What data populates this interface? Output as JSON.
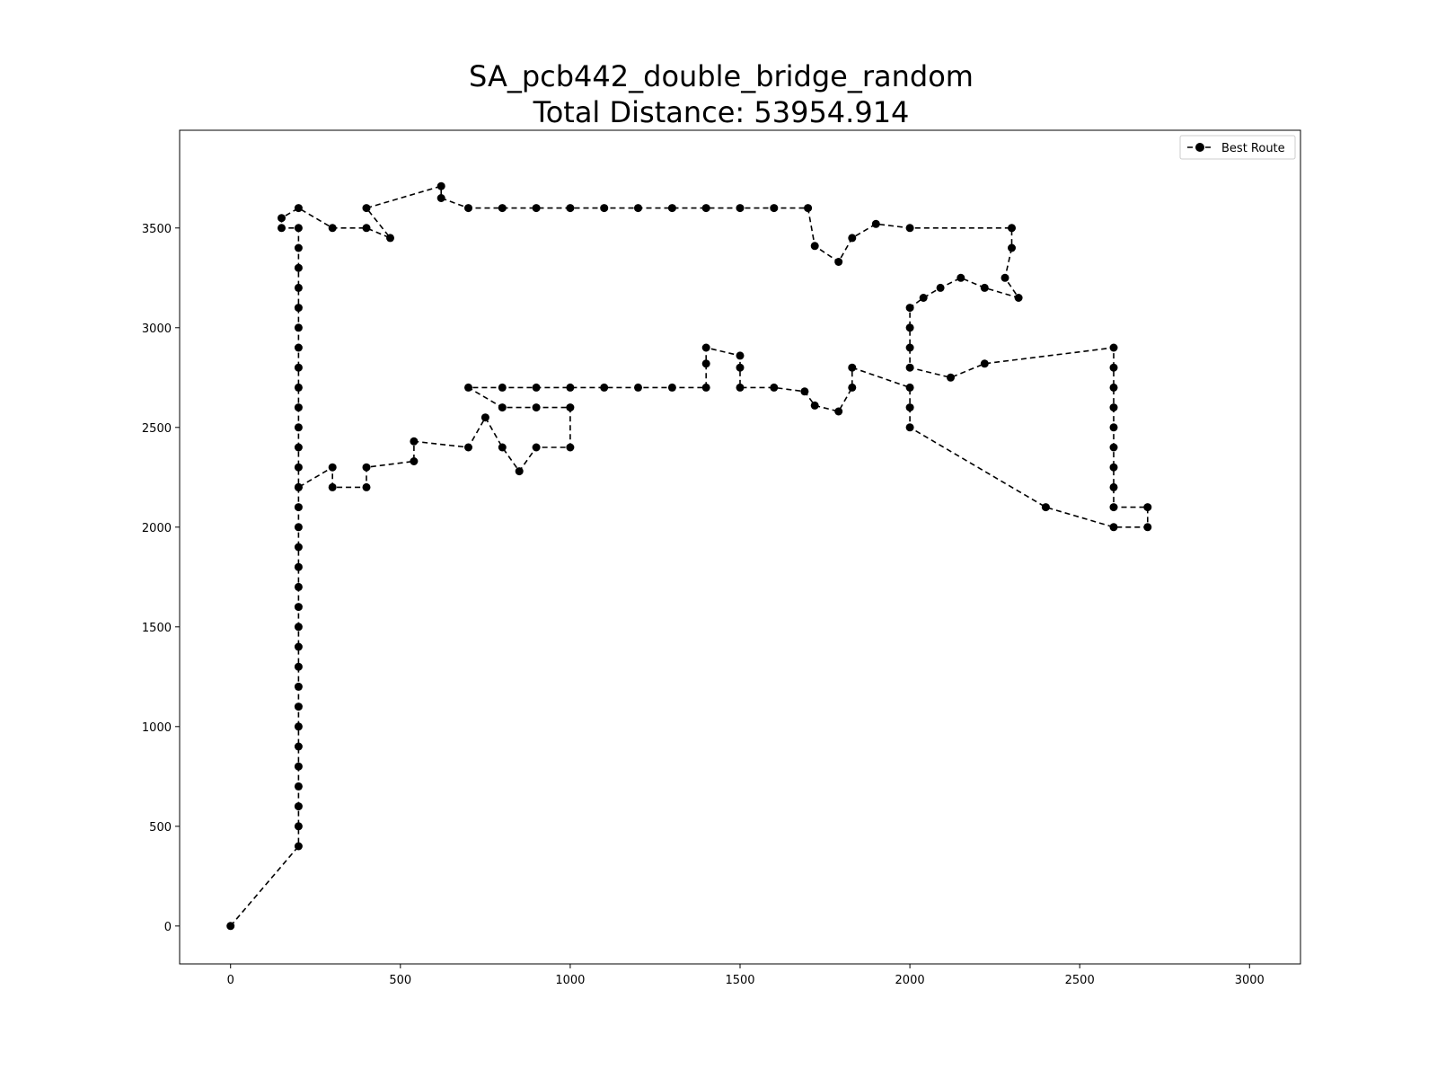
{
  "chart_data": {
    "type": "line",
    "title": "SA_pcb442_double_bridge_random",
    "subtitle": "Total Distance: 53954.914",
    "xlabel": "",
    "ylabel": "",
    "xlim": [
      -150,
      3150
    ],
    "ylim": [
      -190,
      3990
    ],
    "xticks": [
      0,
      500,
      1000,
      1500,
      2000,
      2500,
      3000
    ],
    "yticks": [
      0,
      500,
      1000,
      1500,
      2000,
      2500,
      3000,
      3500
    ],
    "grid": false,
    "legend_position": "top-right",
    "line_style": "dashed",
    "marker": "circle",
    "color": "#000000",
    "series": [
      {
        "name": "Best Route",
        "points": [
          [
            0,
            0
          ],
          [
            200,
            400
          ],
          [
            200,
            500
          ],
          [
            200,
            600
          ],
          [
            200,
            700
          ],
          [
            200,
            800
          ],
          [
            200,
            900
          ],
          [
            200,
            1000
          ],
          [
            200,
            1100
          ],
          [
            200,
            1200
          ],
          [
            200,
            1300
          ],
          [
            200,
            1400
          ],
          [
            200,
            1500
          ],
          [
            200,
            1600
          ],
          [
            200,
            1700
          ],
          [
            200,
            1800
          ],
          [
            200,
            1900
          ],
          [
            200,
            2000
          ],
          [
            200,
            2100
          ],
          [
            200,
            2200
          ],
          [
            200,
            2300
          ],
          [
            200,
            2400
          ],
          [
            200,
            2500
          ],
          [
            200,
            2600
          ],
          [
            200,
            2700
          ],
          [
            200,
            2800
          ],
          [
            200,
            2900
          ],
          [
            200,
            3000
          ],
          [
            200,
            3100
          ],
          [
            200,
            3200
          ],
          [
            200,
            3300
          ],
          [
            200,
            3400
          ],
          [
            200,
            3500
          ],
          [
            150,
            3500
          ],
          [
            150,
            3550
          ],
          [
            200,
            3600
          ],
          [
            300,
            3500
          ],
          [
            400,
            3500
          ],
          [
            470,
            3450
          ],
          [
            400,
            3600
          ],
          [
            620,
            3710
          ],
          [
            620,
            3650
          ],
          [
            700,
            3600
          ],
          [
            800,
            3600
          ],
          [
            900,
            3600
          ],
          [
            1000,
            3600
          ],
          [
            1100,
            3600
          ],
          [
            1200,
            3600
          ],
          [
            1300,
            3600
          ],
          [
            1400,
            3600
          ],
          [
            1500,
            3600
          ],
          [
            1600,
            3600
          ],
          [
            1700,
            3600
          ],
          [
            1720,
            3410
          ],
          [
            1790,
            3330
          ],
          [
            1830,
            3450
          ],
          [
            1900,
            3520
          ],
          [
            2000,
            3500
          ],
          [
            2300,
            3500
          ],
          [
            2300,
            3400
          ],
          [
            2280,
            3250
          ],
          [
            2320,
            3150
          ],
          [
            2220,
            3200
          ],
          [
            2150,
            3250
          ],
          [
            2090,
            3200
          ],
          [
            2040,
            3150
          ],
          [
            2000,
            3100
          ],
          [
            2000,
            3000
          ],
          [
            2000,
            2900
          ],
          [
            2000,
            2800
          ],
          [
            2120,
            2750
          ],
          [
            2220,
            2820
          ],
          [
            2600,
            2900
          ],
          [
            2600,
            2800
          ],
          [
            2600,
            2700
          ],
          [
            2600,
            2600
          ],
          [
            2600,
            2500
          ],
          [
            2600,
            2400
          ],
          [
            2600,
            2300
          ],
          [
            2600,
            2200
          ],
          [
            2600,
            2100
          ],
          [
            2700,
            2100
          ],
          [
            2700,
            2000
          ],
          [
            2600,
            2000
          ],
          [
            2400,
            2100
          ],
          [
            2000,
            2500
          ],
          [
            2000,
            2600
          ],
          [
            2000,
            2700
          ],
          [
            1830,
            2800
          ],
          [
            1830,
            2700
          ],
          [
            1790,
            2580
          ],
          [
            1720,
            2610
          ],
          [
            1690,
            2680
          ],
          [
            1600,
            2700
          ],
          [
            1500,
            2700
          ],
          [
            1500,
            2800
          ],
          [
            1500,
            2860
          ],
          [
            1400,
            2900
          ],
          [
            1400,
            2820
          ],
          [
            1400,
            2700
          ],
          [
            1300,
            2700
          ],
          [
            1200,
            2700
          ],
          [
            1100,
            2700
          ],
          [
            1000,
            2700
          ],
          [
            900,
            2700
          ],
          [
            800,
            2700
          ],
          [
            700,
            2700
          ],
          [
            800,
            2600
          ],
          [
            900,
            2600
          ],
          [
            1000,
            2600
          ],
          [
            1000,
            2400
          ],
          [
            900,
            2400
          ],
          [
            850,
            2280
          ],
          [
            800,
            2400
          ],
          [
            750,
            2550
          ],
          [
            700,
            2400
          ],
          [
            540,
            2430
          ],
          [
            540,
            2330
          ],
          [
            400,
            2300
          ],
          [
            400,
            2200
          ],
          [
            300,
            2200
          ],
          [
            300,
            2300
          ],
          [
            200,
            2200
          ]
        ]
      }
    ]
  }
}
